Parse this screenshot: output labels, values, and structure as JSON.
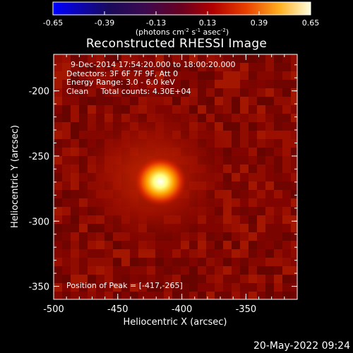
{
  "colorbar": {
    "ticks": [
      "-0.65",
      "-0.39",
      "-0.13",
      "0.13",
      "0.39",
      "0.65"
    ],
    "units_prefix": "(photons cm",
    "units_exp1": "-2",
    "units_mid": " s",
    "units_exp2": "-1",
    "units_mid2": " asec",
    "units_exp3": "-2",
    "units_suffix": ")"
  },
  "title": "Reconstructed RHESSI Image",
  "info": {
    "line1": "9-Dec-2014 17:54:20.000 to 18:00:20.000",
    "line2": "Detectors: 3F 6F 7F 9F, Att 0",
    "line3": "Energy Range: 3.0 - 6.0 keV",
    "line4_a": "Clean",
    "line4_b": "Total counts: 4.30E+04"
  },
  "peak_label": "Position of Peak = [-417,-265]",
  "ylabel": "Heliocentric Y (arcsec)",
  "xlabel": "Heliocentric X (arcsec)",
  "yticks": [
    "-200",
    "-250",
    "-300",
    "-350"
  ],
  "xticks": [
    "-500",
    "-450",
    "-400",
    "-350"
  ],
  "footer_date": "20-May-2022 09:24",
  "colors": {
    "background": "#000000",
    "text": "#ffffff",
    "peak": "#ffffe0",
    "glow": "#b01a00"
  },
  "chart_data": {
    "type": "heatmap",
    "title": "Reconstructed RHESSI Image",
    "xlabel": "Heliocentric X (arcsec)",
    "ylabel": "Heliocentric Y (arcsec)",
    "xlim": [
      -500,
      -310
    ],
    "ylim": [
      -360,
      -172
    ],
    "peak": [
      -417,
      -265
    ],
    "colorbar_range": [
      -0.65,
      0.65
    ]
  }
}
